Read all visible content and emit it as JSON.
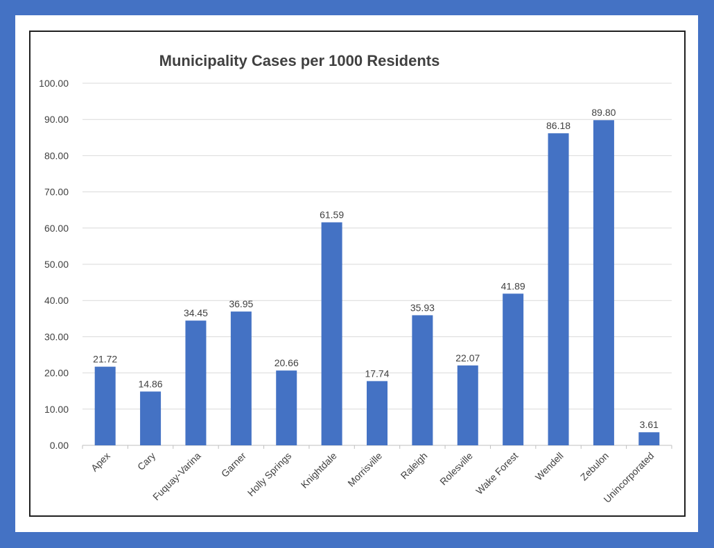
{
  "colors": {
    "background": "#4472c4",
    "bar": "#4472c4",
    "grid": "#d9d9d9",
    "text": "#404040"
  },
  "chart_data": {
    "type": "bar",
    "title": "Municipality Cases per 1000 Residents",
    "xlabel": "",
    "ylabel": "",
    "ylim": [
      0,
      100
    ],
    "ytick_step": 10,
    "ytick_labels": [
      "0.00",
      "10.00",
      "20.00",
      "30.00",
      "40.00",
      "50.00",
      "60.00",
      "70.00",
      "80.00",
      "90.00",
      "100.00"
    ],
    "grid": true,
    "legend": "none",
    "categories": [
      "Apex",
      "Cary",
      "Fuquay-Varina",
      "Garner",
      "Holly Springs",
      "Knightdale",
      "Morrisville",
      "Raleigh",
      "Rolesville",
      "Wake Forest",
      "Wendell",
      "Zebulon",
      "Unincorporated"
    ],
    "values": [
      21.72,
      14.86,
      34.45,
      36.95,
      20.66,
      61.59,
      17.74,
      35.93,
      22.07,
      41.89,
      86.18,
      89.8,
      3.61
    ],
    "data_labels": [
      "21.72",
      "14.86",
      "34.45",
      "36.95",
      "20.66",
      "61.59",
      "17.74",
      "35.93",
      "22.07",
      "41.89",
      "86.18",
      "89.80",
      "3.61"
    ]
  }
}
